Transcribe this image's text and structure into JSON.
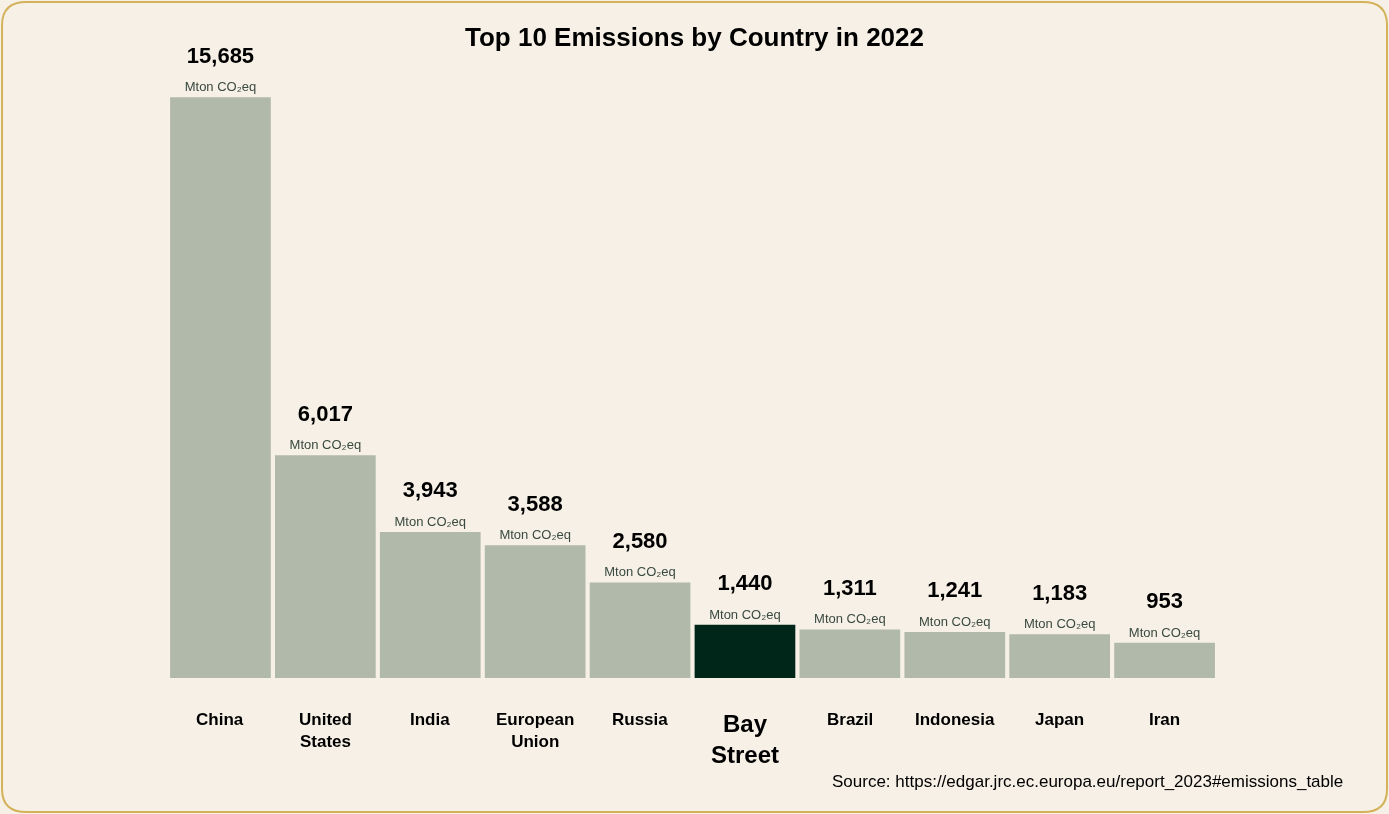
{
  "chart_data": {
    "type": "bar",
    "title": "Top 10 Emissions by Country in 2022",
    "categories": [
      "China",
      "United States",
      "India",
      "European Union",
      "Russia",
      "Bay Street",
      "Brazil",
      "Indonesia",
      "Japan",
      "Iran"
    ],
    "values": [
      15685,
      6017,
      3943,
      3588,
      2580,
      1440,
      1311,
      1241,
      1183,
      953
    ],
    "value_labels": [
      "15,685\nMton CO₂eq",
      "6,017\nMton CO₂eq",
      "3,943\nMton CO₂eq",
      "3,588\nMton CO₂eq",
      "2,580\nMton CO₂eq",
      "1,440\nMton CO₂eq",
      "1,311\nMton CO₂eq",
      "1,241\nMton CO₂eq",
      "1,183\nMton CO₂eq",
      "953\nMton CO₂eq"
    ],
    "colors": [
      "#b1baaa",
      "#b1baaa",
      "#b1baaa",
      "#b1baaa",
      "#b1baaa",
      "#00261a",
      "#b1baaa",
      "#b1baaa",
      "#b1baaa",
      "#b1baaa"
    ],
    "annotations": [
      "Source: https://edgar.jrc.ec.europa.eu/report_2023#emissions_table"
    ],
    "grid": false,
    "legend": false
  }
}
